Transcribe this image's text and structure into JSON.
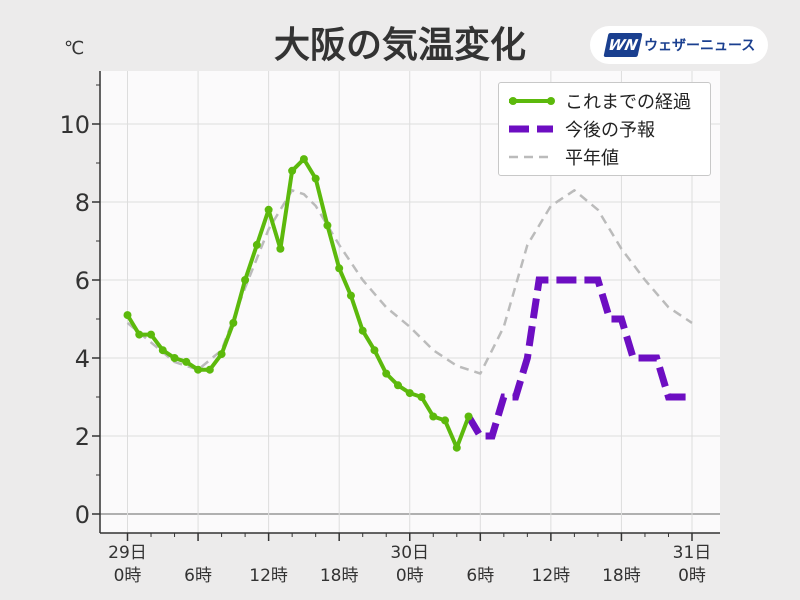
{
  "title": "大阪の気温変化",
  "unit": "℃",
  "logo": {
    "mark": "WN",
    "text": "ウェザーニュース"
  },
  "legend": [
    {
      "label": "これまでの経過",
      "color": "#5cb90c",
      "style": "solid-dots"
    },
    {
      "label": "今後の予報",
      "color": "#6d0ec2",
      "style": "thick-dash"
    },
    {
      "label": "平年値",
      "color": "#bbbbbb",
      "style": "thin-dash"
    }
  ],
  "chart_data": {
    "type": "line",
    "ylabel": "℃",
    "ylim": [
      -0.5,
      11.3
    ],
    "xlim": [
      0,
      48
    ],
    "y_ticks": [
      0,
      2,
      4,
      6,
      8,
      10
    ],
    "x_ticks": [
      {
        "x": 0,
        "line1": "29日",
        "line2": "0時"
      },
      {
        "x": 6,
        "line1": "",
        "line2": "6時"
      },
      {
        "x": 12,
        "line1": "",
        "line2": "12時"
      },
      {
        "x": 18,
        "line1": "",
        "line2": "18時"
      },
      {
        "x": 24,
        "line1": "30日",
        "line2": "0時"
      },
      {
        "x": 30,
        "line1": "",
        "line2": "6時"
      },
      {
        "x": 36,
        "line1": "",
        "line2": "12時"
      },
      {
        "x": 42,
        "line1": "",
        "line2": "18時"
      },
      {
        "x": 48,
        "line1": "31日",
        "line2": "0時"
      }
    ],
    "grid": true,
    "legend_position": "top-right",
    "series": [
      {
        "name": "これまでの経過",
        "color": "#5cb90c",
        "x": [
          0,
          1,
          2,
          3,
          4,
          5,
          6,
          7,
          8,
          9,
          10,
          11,
          12,
          13,
          14,
          15,
          16,
          17,
          18,
          19,
          20,
          21,
          22,
          23,
          24,
          25,
          26,
          27,
          28,
          29
        ],
        "values": [
          5.1,
          4.6,
          4.6,
          4.2,
          4.0,
          3.9,
          3.7,
          3.7,
          4.1,
          4.9,
          6.0,
          6.9,
          7.8,
          6.8,
          8.8,
          9.1,
          8.6,
          7.4,
          6.3,
          5.6,
          4.7,
          4.2,
          3.6,
          3.3,
          3.1,
          3.0,
          2.5,
          2.4,
          1.7,
          2.5
        ]
      },
      {
        "name": "今後の予報",
        "color": "#6d0ec2",
        "x": [
          29,
          30,
          31,
          32,
          33,
          34,
          35,
          36,
          37,
          38,
          39,
          40,
          41,
          42,
          43,
          44,
          45,
          46,
          47,
          48
        ],
        "values": [
          2.5,
          2.0,
          2.0,
          3.0,
          3.0,
          4.0,
          6.0,
          6.0,
          6.0,
          6.0,
          6.0,
          6.0,
          5.0,
          5.0,
          4.0,
          4.0,
          4.0,
          3.0,
          3.0,
          3.0
        ]
      },
      {
        "name": "平年値",
        "color": "#bbbbbb",
        "x": [
          0,
          2,
          4,
          6,
          8,
          10,
          12,
          14,
          15,
          16,
          18,
          20,
          22,
          24,
          26,
          28,
          30,
          32,
          34,
          36,
          38,
          40,
          42,
          44,
          46,
          48
        ],
        "values": [
          4.9,
          4.4,
          3.9,
          3.7,
          4.2,
          5.8,
          7.3,
          8.3,
          8.2,
          7.9,
          6.9,
          6.0,
          5.3,
          4.8,
          4.2,
          3.8,
          3.6,
          4.8,
          6.9,
          7.9,
          8.3,
          7.8,
          6.8,
          6.0,
          5.3,
          4.9
        ]
      }
    ]
  }
}
